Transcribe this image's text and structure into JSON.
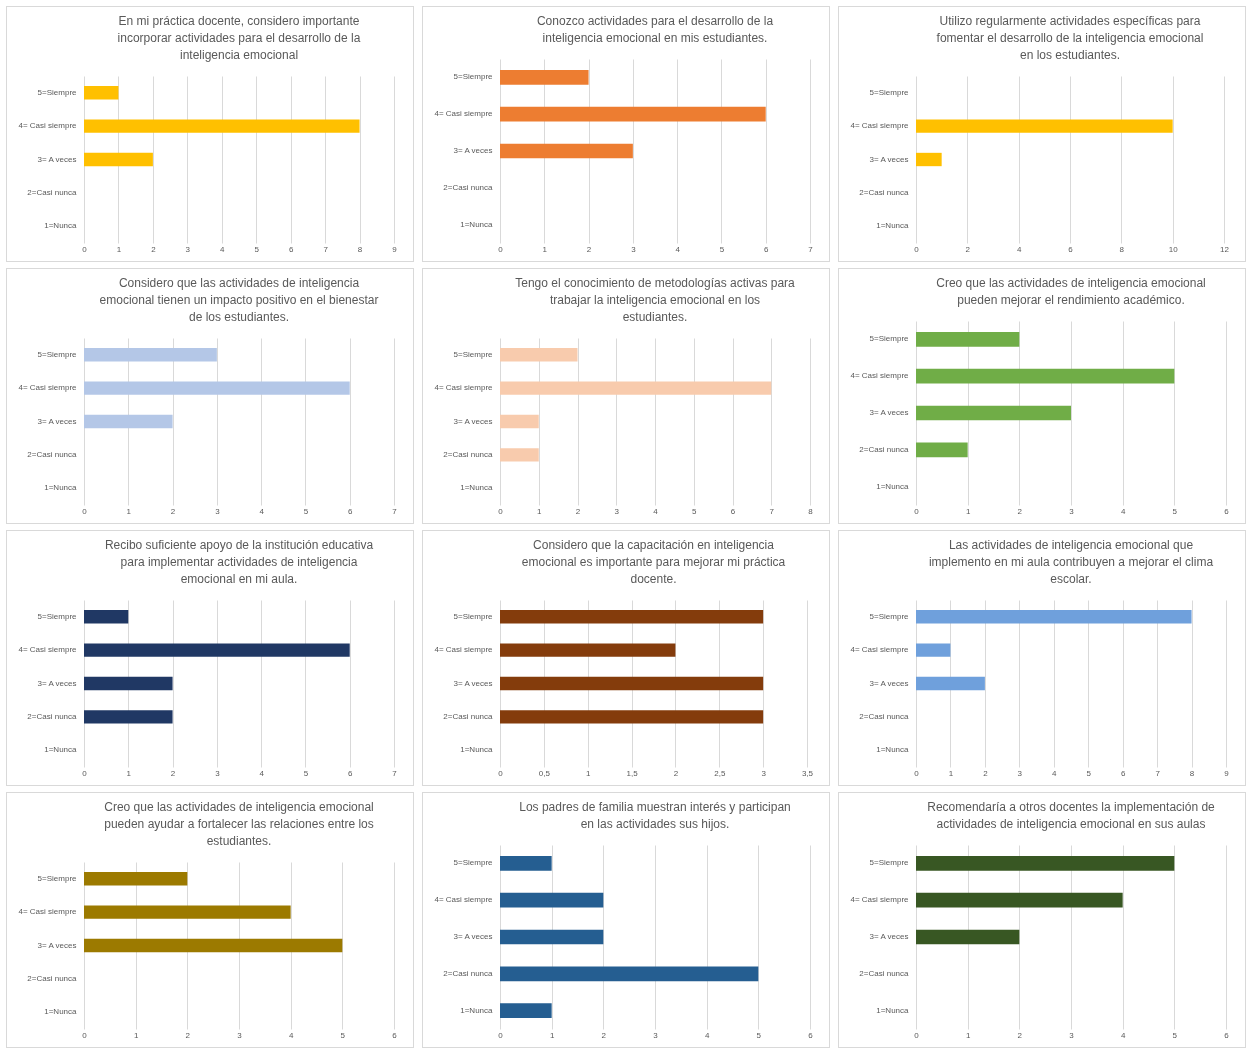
{
  "chart_data": [
    {
      "type": "bar",
      "orientation": "horizontal",
      "grid": "x",
      "title": "En mi práctica docente, considero importante incorporar actividades para el desarrollo de la inteligencia emocional",
      "categories": [
        "5=Siempre",
        "4= Casi siempre",
        "3= A veces",
        "2=Casi nunca",
        "1=Nunca"
      ],
      "values": [
        1,
        8,
        2,
        0,
        0
      ],
      "color": "#ffc000",
      "xlim": [
        0,
        9
      ],
      "xticks": [
        0,
        1,
        2,
        3,
        4,
        5,
        6,
        7,
        8,
        9
      ]
    },
    {
      "type": "bar",
      "orientation": "horizontal",
      "grid": "x",
      "title": "Conozco actividades para el desarrollo de la inteligencia emocional en mis estudiantes.",
      "categories": [
        "5=Siempre",
        "4= Casi siempre",
        "3= A veces",
        "2=Casi nunca",
        "1=Nunca"
      ],
      "values": [
        2,
        6,
        3,
        0,
        0
      ],
      "color": "#ed7d31",
      "xlim": [
        0,
        7
      ],
      "xticks": [
        0,
        1,
        2,
        3,
        4,
        5,
        6,
        7
      ]
    },
    {
      "type": "bar",
      "orientation": "horizontal",
      "grid": "x",
      "title": "Utilizo regularmente actividades específicas para fomentar el desarrollo de la inteligencia emocional en los estudiantes.",
      "categories": [
        "5=Siempre",
        "4= Casi siempre",
        "3= A veces",
        "2=Casi nunca",
        "1=Nunca"
      ],
      "values": [
        0,
        10,
        1,
        0,
        0
      ],
      "color": "#ffc000",
      "xlim": [
        0,
        12
      ],
      "xticks": [
        0,
        2,
        4,
        6,
        8,
        10,
        12
      ]
    },
    {
      "type": "bar",
      "orientation": "horizontal",
      "grid": "x",
      "title": "Considero que las actividades de inteligencia emocional tienen un impacto positivo en el bienestar de los estudiantes.",
      "categories": [
        "5=Siempre",
        "4= Casi siempre",
        "3= A veces",
        "2=Casi nunca",
        "1=Nunca"
      ],
      "values": [
        3,
        6,
        2,
        0,
        0
      ],
      "color": "#b4c7e7",
      "xlim": [
        0,
        7
      ],
      "xticks": [
        0,
        1,
        2,
        3,
        4,
        5,
        6,
        7
      ]
    },
    {
      "type": "bar",
      "orientation": "horizontal",
      "grid": "x",
      "title": "Tengo el conocimiento de metodologías activas para trabajar la inteligencia emocional en los estudiantes.",
      "categories": [
        "5=Siempre",
        "4= Casi siempre",
        "3= A veces",
        "2=Casi nunca",
        "1=Nunca"
      ],
      "values": [
        2,
        7,
        1,
        1,
        0
      ],
      "color": "#f8cbad",
      "xlim": [
        0,
        8
      ],
      "xticks": [
        0,
        1,
        2,
        3,
        4,
        5,
        6,
        7,
        8
      ]
    },
    {
      "type": "bar",
      "orientation": "horizontal",
      "grid": "x",
      "title": "Creo que las actividades de inteligencia emocional pueden mejorar el rendimiento académico.",
      "categories": [
        "5=Siempre",
        "4= Casi siempre",
        "3= A veces",
        "2=Casi nunca",
        "1=Nunca"
      ],
      "values": [
        2,
        5,
        3,
        1,
        0
      ],
      "color": "#70ad47",
      "xlim": [
        0,
        6
      ],
      "xticks": [
        0,
        1,
        2,
        3,
        4,
        5,
        6
      ]
    },
    {
      "type": "bar",
      "orientation": "horizontal",
      "grid": "x",
      "title": "Recibo suficiente apoyo de la institución educativa para implementar actividades de inteligencia emocional en mi aula.",
      "categories": [
        "5=Siempre",
        "4= Casi siempre",
        "3= A veces",
        "2=Casi nunca",
        "1=Nunca"
      ],
      "values": [
        1,
        6,
        2,
        2,
        0
      ],
      "color": "#203864",
      "xlim": [
        0,
        7
      ],
      "xticks": [
        0,
        1,
        2,
        3,
        4,
        5,
        6,
        7
      ]
    },
    {
      "type": "bar",
      "orientation": "horizontal",
      "grid": "x",
      "title": "Considero que la capacitación en inteligencia emocional es importante para mejorar mi práctica docente.",
      "categories": [
        "5=Siempre",
        "4= Casi siempre",
        "3= A veces",
        "2=Casi nunca",
        "1=Nunca"
      ],
      "values": [
        3,
        2,
        3,
        3,
        0
      ],
      "color": "#843c0c",
      "xlim": [
        0,
        3.5
      ],
      "xticks": [
        0,
        {
          "value": 0.5,
          "label": "0,5"
        },
        1,
        {
          "value": 1.5,
          "label": "1,5"
        },
        2,
        {
          "value": 2.5,
          "label": "2,5"
        },
        3,
        {
          "value": 3.5,
          "label": "3,5"
        }
      ]
    },
    {
      "type": "bar",
      "orientation": "horizontal",
      "grid": "x",
      "title": "Las actividades de inteligencia emocional que implemento en mi aula contribuyen a mejorar el clima escolar.",
      "categories": [
        "5=Siempre",
        "4= Casi siempre",
        "3= A veces",
        "2=Casi nunca",
        "1=Nunca"
      ],
      "values": [
        8,
        1,
        2,
        0,
        0
      ],
      "color": "#6fa0dc",
      "xlim": [
        0,
        9
      ],
      "xticks": [
        0,
        1,
        2,
        3,
        4,
        5,
        6,
        7,
        8,
        9
      ]
    },
    {
      "type": "bar",
      "orientation": "horizontal",
      "grid": "x",
      "title": "Creo que las actividades de inteligencia emocional pueden ayudar a fortalecer las relaciones entre los estudiantes.",
      "categories": [
        "5=Siempre",
        "4= Casi siempre",
        "3= A veces",
        "2=Casi nunca",
        "1=Nunca"
      ],
      "values": [
        2,
        4,
        5,
        0,
        0
      ],
      "color": "#9c7a00",
      "xlim": [
        0,
        6
      ],
      "xticks": [
        0,
        1,
        2,
        3,
        4,
        5,
        6
      ]
    },
    {
      "type": "bar",
      "orientation": "horizontal",
      "grid": "x",
      "title": "Los padres de familia muestran interés y participan en las actividades sus hijos.",
      "categories": [
        "5=Siempre",
        "4= Casi siempre",
        "3= A veces",
        "2=Casi nunca",
        "1=Nunca"
      ],
      "values": [
        1,
        2,
        2,
        5,
        1
      ],
      "color": "#255e91",
      "xlim": [
        0,
        6
      ],
      "xticks": [
        0,
        1,
        2,
        3,
        4,
        5,
        6
      ]
    },
    {
      "type": "bar",
      "orientation": "horizontal",
      "grid": "x",
      "title": "Recomendaría a otros docentes la implementación de actividades de inteligencia emocional en sus aulas",
      "categories": [
        "5=Siempre",
        "4= Casi siempre",
        "3= A veces",
        "2=Casi nunca",
        "1=Nunca"
      ],
      "values": [
        5,
        4,
        2,
        0,
        0
      ],
      "color": "#385723",
      "xlim": [
        0,
        6
      ],
      "xticks": [
        0,
        1,
        2,
        3,
        4,
        5,
        6
      ]
    }
  ]
}
